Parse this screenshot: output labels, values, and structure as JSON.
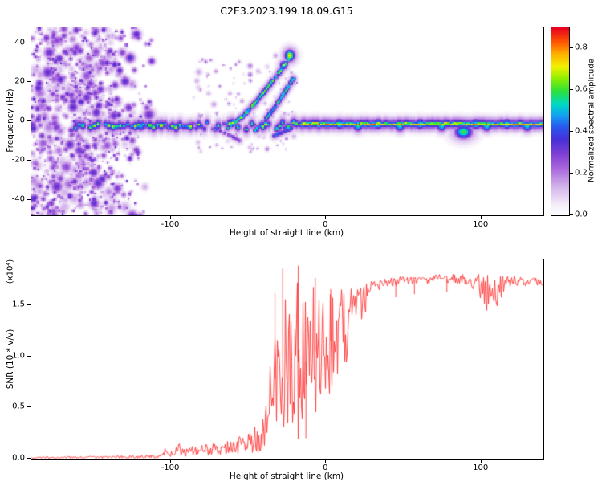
{
  "chart_data": [
    {
      "type": "heatmap",
      "title": "C2E3.2023.199.18.09.G15",
      "xlabel": "Height of straight line (km)",
      "ylabel": "Frequency (Hz)",
      "xlim": [
        -190,
        140
      ],
      "ylim": [
        -48,
        48
      ],
      "xticks": [
        [
          -100,
          "-100"
        ],
        [
          0,
          "0"
        ],
        [
          100,
          "100"
        ]
      ],
      "yticks": [
        [
          -40,
          "-40"
        ],
        [
          -20,
          "-20"
        ],
        [
          0,
          "0"
        ],
        [
          20,
          "20"
        ],
        [
          40,
          "40"
        ]
      ],
      "grid": false,
      "colorbar": {
        "label": "Normalized spectral amplitude",
        "ticks": [
          [
            0,
            "0.0"
          ],
          [
            0.2,
            "0.2"
          ],
          [
            0.4,
            "0.4"
          ],
          [
            0.6,
            "0.6"
          ],
          [
            0.8,
            "0.8"
          ]
        ],
        "range": [
          0,
          0.9
        ],
        "position": "right"
      },
      "colormap_stops": [
        [
          0.0,
          "#ffffff"
        ],
        [
          0.05,
          "#f6effa"
        ],
        [
          0.15,
          "#d4b4ec"
        ],
        [
          0.25,
          "#a866dd"
        ],
        [
          0.33,
          "#7d3fd4"
        ],
        [
          0.4,
          "#4b2fd8"
        ],
        [
          0.47,
          "#2b59ee"
        ],
        [
          0.53,
          "#14a0f2"
        ],
        [
          0.59,
          "#00d8c8"
        ],
        [
          0.66,
          "#2ce23c"
        ],
        [
          0.73,
          "#8ff000"
        ],
        [
          0.79,
          "#f2f200"
        ],
        [
          0.86,
          "#ffb000"
        ],
        [
          0.92,
          "#ff5a00"
        ],
        [
          1.0,
          "#e60020"
        ]
      ],
      "features": {
        "speckle": [
          {
            "x_range": [
              -190,
              -112
            ],
            "y_range": [
              -48,
              48
            ],
            "count": 1300,
            "amp_range": [
              0.1,
              0.42
            ],
            "fade_start": -148,
            "r_range": [
              0.5,
              3.0
            ]
          },
          {
            "x_range": [
              -86,
              -18
            ],
            "y_range": [
              -16,
              34
            ],
            "count": 130,
            "amp_range": [
              0.1,
              0.26
            ],
            "fade_start": null,
            "r_range": [
              0.5,
              1.8
            ]
          }
        ],
        "band_segments": [
          {
            "x_range": [
              -162,
              -88
            ],
            "y": -2,
            "step": 2.4,
            "rx": 1.2,
            "ry": [
              0.9,
              1.8,
              3.0
            ],
            "amp": [
              0.55,
              0.92
            ],
            "y_jitter": 1.0,
            "gap_prob": 0.12
          },
          {
            "x_range": [
              -88,
              -16
            ],
            "y": -2,
            "step": 1.8,
            "rx": 1.2,
            "ry": [
              0.8,
              1.6,
              2.8
            ],
            "amp": [
              0.35,
              0.88
            ],
            "y_jitter": 2.0,
            "gap_prob": 0.22
          },
          {
            "x_range": [
              -16,
              140
            ],
            "y": -1,
            "step": 1.2,
            "rx": 1.5,
            "ry": [
              0.55,
              1.3,
              2.6
            ],
            "amp": [
              0.78,
              1.0
            ],
            "y_jitter": 0.3,
            "gap_prob": 0
          }
        ],
        "bulges": [
          [
            8,
            -1
          ],
          [
            20,
            -2
          ],
          [
            33,
            -1
          ],
          [
            47,
            -2
          ],
          [
            60,
            -1
          ],
          [
            74,
            -2
          ],
          [
            96,
            -1
          ],
          [
            103,
            -2
          ],
          [
            116,
            -1
          ],
          [
            129,
            -2
          ]
        ],
        "arcs": [
          {
            "points": [
              [
                -64,
                -3
              ],
              [
                -54,
                3
              ],
              [
                -46,
                10
              ],
              [
                -38,
                18
              ],
              [
                -30,
                26
              ],
              [
                -24,
                33
              ]
            ],
            "amp": 0.8
          },
          {
            "points": [
              [
                -46,
                -4
              ],
              [
                -40,
                1
              ],
              [
                -34,
                7
              ],
              [
                -29,
                13
              ],
              [
                -25,
                18
              ],
              [
                -21,
                23
              ]
            ],
            "amp": 0.72
          },
          {
            "points": [
              [
                -70,
                -4
              ],
              [
                -62,
                -7
              ],
              [
                -55,
                -10
              ]
            ],
            "amp": 0.4
          },
          {
            "points": [
              [
                -34,
                -7
              ],
              [
                -28,
                -5
              ],
              [
                -22,
                -3
              ]
            ],
            "amp": 0.55
          }
        ],
        "blobs": [
          {
            "x": -24,
            "y": 34,
            "amp": 0.82,
            "rx": 2.2,
            "ry": 2.0
          },
          {
            "x": -28,
            "y": 29,
            "amp": 0.6,
            "rx": 1.8,
            "ry": 1.6
          },
          {
            "x": 88,
            "y": -5,
            "amp": 0.68,
            "rx": 4.0,
            "ry": 2.4
          },
          {
            "x": -120,
            "y": -2,
            "amp": 0.55,
            "rx": 2.5,
            "ry": 1.8
          }
        ]
      }
    },
    {
      "type": "line",
      "xlabel": "Height of straight line (km)",
      "ylabel": "SNR (10 * v/v)",
      "y_scale_label": "(x10⁴)",
      "xlim": [
        -190,
        140
      ],
      "ylim": [
        0,
        1.95
      ],
      "xticks": [
        [
          -100,
          "-100"
        ],
        [
          0,
          "0"
        ],
        [
          100,
          "100"
        ]
      ],
      "yticks": [
        [
          0,
          "0.0"
        ],
        [
          0.5,
          "0.5"
        ],
        [
          1.0,
          "1.0"
        ],
        [
          1.5,
          "1.5"
        ]
      ],
      "line_color": "#ff3333",
      "anchors": [
        [
          -190,
          0.01,
          0.008
        ],
        [
          -165,
          0.012,
          0.01
        ],
        [
          -145,
          0.015,
          0.012
        ],
        [
          -128,
          0.018,
          0.014
        ],
        [
          -116,
          0.022,
          0.018
        ],
        [
          -108,
          0.03,
          0.022
        ],
        [
          -103,
          0.07,
          0.045
        ],
        [
          -99,
          0.04,
          0.03
        ],
        [
          -95,
          0.095,
          0.055
        ],
        [
          -91,
          0.05,
          0.04
        ],
        [
          -87,
          0.085,
          0.05
        ],
        [
          -83,
          0.06,
          0.045
        ],
        [
          -79,
          0.105,
          0.06
        ],
        [
          -75,
          0.075,
          0.05
        ],
        [
          -71,
          0.11,
          0.07
        ],
        [
          -67,
          0.09,
          0.06
        ],
        [
          -63,
          0.125,
          0.08
        ],
        [
          -59,
          0.105,
          0.07
        ],
        [
          -55,
          0.15,
          0.1
        ],
        [
          -51,
          0.125,
          0.09
        ],
        [
          -47,
          0.2,
          0.14
        ],
        [
          -44,
          0.17,
          0.13
        ],
        [
          -41,
          0.3,
          0.22
        ],
        [
          -38,
          0.45,
          0.35
        ],
        [
          -35,
          0.65,
          0.5
        ],
        [
          -32,
          0.85,
          0.65
        ],
        [
          -29,
          0.7,
          0.6
        ],
        [
          -26,
          1.0,
          0.75
        ],
        [
          -23,
          0.85,
          0.7
        ],
        [
          -20,
          1.05,
          0.8
        ],
        [
          -17,
          0.9,
          0.75
        ],
        [
          -14,
          1.0,
          0.7
        ],
        [
          -11,
          0.85,
          0.65
        ],
        [
          -8,
          1.1,
          0.65
        ],
        [
          -5,
          0.95,
          0.6
        ],
        [
          -2,
          1.15,
          0.55
        ],
        [
          1,
          1.05,
          0.5
        ],
        [
          4,
          1.2,
          0.48
        ],
        [
          7,
          1.1,
          0.45
        ],
        [
          10,
          1.3,
          0.4
        ],
        [
          13,
          1.25,
          0.35
        ],
        [
          16,
          1.4,
          0.3
        ],
        [
          19,
          1.38,
          0.25
        ],
        [
          22,
          1.5,
          0.2
        ],
        [
          25,
          1.56,
          0.15
        ],
        [
          28,
          1.63,
          0.1
        ],
        [
          32,
          1.69,
          0.06
        ],
        [
          38,
          1.72,
          0.045
        ],
        [
          46,
          1.73,
          0.05
        ],
        [
          55,
          1.745,
          0.04
        ],
        [
          65,
          1.75,
          0.04
        ],
        [
          75,
          1.76,
          0.05
        ],
        [
          85,
          1.76,
          0.045
        ],
        [
          93,
          1.745,
          0.06
        ],
        [
          99,
          1.7,
          0.11
        ],
        [
          103,
          1.62,
          0.2
        ],
        [
          107,
          1.68,
          0.13
        ],
        [
          111,
          1.64,
          0.19
        ],
        [
          115,
          1.71,
          0.09
        ],
        [
          120,
          1.74,
          0.045
        ],
        [
          128,
          1.735,
          0.04
        ],
        [
          135,
          1.73,
          0.04
        ],
        [
          140,
          1.73,
          0.04
        ]
      ],
      "spikes": [
        [
          -33,
          1.62
        ],
        [
          -28,
          1.86
        ],
        [
          -18,
          1.89
        ],
        [
          -13,
          0.2
        ],
        [
          -7,
          1.77
        ],
        [
          3,
          1.66
        ],
        [
          45,
          1.58
        ],
        [
          57,
          1.61
        ],
        [
          78,
          1.63
        ]
      ]
    }
  ]
}
